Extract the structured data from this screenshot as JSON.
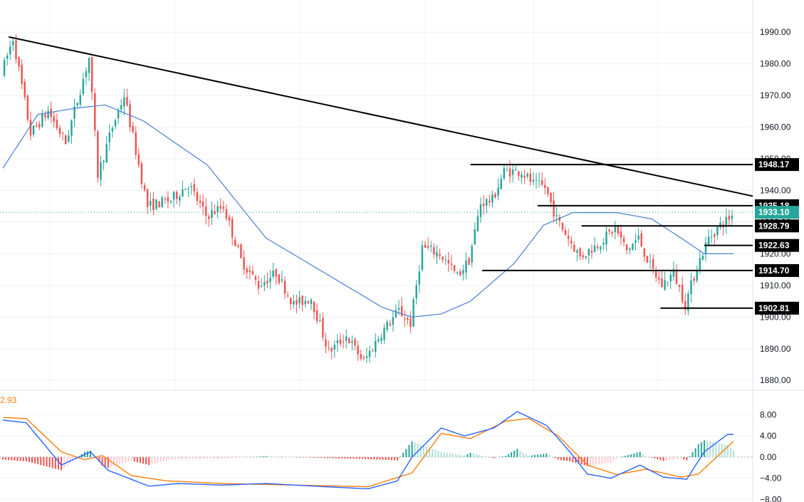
{
  "chart_data": [
    {
      "type": "candlestick",
      "title": "",
      "xlabel": "",
      "ylabel": "",
      "ylim": [
        1876,
        1997
      ],
      "y_ticks": [
        "1990.00",
        "1980.00",
        "1970.00",
        "1960.00",
        "1950.00",
        "1940.00",
        "1930.00",
        "1920.00",
        "1910.00",
        "1900.00",
        "1890.00",
        "1880.00"
      ],
      "y_tick_values": [
        1990,
        1980,
        1970,
        1960,
        1950,
        1940,
        1930,
        1920,
        1910,
        1900,
        1890,
        1880
      ],
      "grid": true,
      "colors": {
        "up": "#26a69a",
        "down": "#ef5350",
        "ma": "#4a7fd4",
        "line": "#000000",
        "last": "#26a69a"
      },
      "price_path": [
        [
          0,
          1977
        ],
        [
          4,
          1988
        ],
        [
          10,
          1958
        ],
        [
          16,
          1965
        ],
        [
          22,
          1955
        ],
        [
          30,
          1982
        ],
        [
          33,
          1945
        ],
        [
          38,
          1960
        ],
        [
          42,
          1970
        ],
        [
          50,
          1935
        ],
        [
          58,
          1937
        ],
        [
          64,
          1942
        ],
        [
          70,
          1932
        ],
        [
          76,
          1935
        ],
        [
          82,
          1918
        ],
        [
          88,
          1910
        ],
        [
          94,
          1914
        ],
        [
          100,
          1904
        ],
        [
          106,
          1906
        ],
        [
          112,
          1889
        ],
        [
          118,
          1894
        ],
        [
          124,
          1886
        ],
        [
          130,
          1895
        ],
        [
          136,
          1902
        ],
        [
          140,
          1898
        ],
        [
          144,
          1922
        ],
        [
          150,
          1920
        ],
        [
          156,
          1913
        ],
        [
          160,
          1918
        ],
        [
          164,
          1936
        ],
        [
          168,
          1937
        ],
        [
          172,
          1946
        ],
        [
          178,
          1946
        ],
        [
          182,
          1942
        ],
        [
          186,
          1941
        ],
        [
          190,
          1931
        ],
        [
          194,
          1925
        ],
        [
          198,
          1919
        ],
        [
          204,
          1923
        ],
        [
          210,
          1928
        ],
        [
          214,
          1921
        ],
        [
          218,
          1925
        ],
        [
          222,
          1916
        ],
        [
          226,
          1910
        ],
        [
          230,
          1914
        ],
        [
          234,
          1904
        ],
        [
          238,
          1916
        ],
        [
          242,
          1925
        ],
        [
          246,
          1929
        ],
        [
          250,
          1932
        ]
      ],
      "candle_count": 250,
      "last_price": "1933.10",
      "ma_path": [
        [
          0,
          1947
        ],
        [
          12,
          1964
        ],
        [
          25,
          1966
        ],
        [
          35,
          1967
        ],
        [
          48,
          1962
        ],
        [
          70,
          1948
        ],
        [
          90,
          1925
        ],
        [
          110,
          1914
        ],
        [
          130,
          1903
        ],
        [
          140,
          1900
        ],
        [
          150,
          1901
        ],
        [
          160,
          1905
        ],
        [
          175,
          1917
        ],
        [
          185,
          1929
        ],
        [
          195,
          1933
        ],
        [
          210,
          1933
        ],
        [
          222,
          1931
        ],
        [
          232,
          1925
        ],
        [
          240,
          1920
        ],
        [
          250,
          1920
        ]
      ],
      "trendline": {
        "from": [
          2,
          1988.5
        ],
        "to": [
          250,
          1939.5
        ]
      },
      "levels": [
        {
          "value": 1948.17,
          "label": "1948.17",
          "from": 160
        },
        {
          "value": 1935.18,
          "label": "1935.18",
          "from": 183
        },
        {
          "value": 1928.79,
          "label": "1928.79",
          "from": 198
        },
        {
          "value": 1922.63,
          "label": "1922.63",
          "from": 240
        },
        {
          "value": 1914.7,
          "label": "1914.70",
          "from": 164
        },
        {
          "value": 1902.81,
          "label": "1902.81",
          "from": 225
        }
      ]
    },
    {
      "type": "macd",
      "title": "",
      "ylim": [
        -8.5,
        10.5
      ],
      "y_ticks": [
        "8.00",
        "4.00",
        "0.00",
        "−4.00",
        "−8.00"
      ],
      "y_tick_values": [
        8,
        4,
        0,
        -4,
        -8
      ],
      "current_value_label": "2.93",
      "colors": {
        "macd": "#2962ff",
        "signal": "#ff7f0e",
        "hist_up_strong": "#26a69a",
        "hist_up_weak": "#b2dfdb",
        "hist_down_strong": "#ef5350",
        "hist_down_weak": "#ffcdd2",
        "value_label": "#ff7f0e"
      },
      "macd_path": [
        [
          0,
          7
        ],
        [
          8,
          6.5
        ],
        [
          20,
          -1.5
        ],
        [
          30,
          1
        ],
        [
          36,
          -2.5
        ],
        [
          50,
          -5.5
        ],
        [
          60,
          -5
        ],
        [
          75,
          -5.3
        ],
        [
          90,
          -5
        ],
        [
          110,
          -5.6
        ],
        [
          125,
          -6
        ],
        [
          135,
          -4.5
        ],
        [
          140,
          0
        ],
        [
          150,
          5.5
        ],
        [
          158,
          4
        ],
        [
          168,
          5.5
        ],
        [
          176,
          8.6
        ],
        [
          186,
          6
        ],
        [
          194,
          1
        ],
        [
          200,
          -3.2
        ],
        [
          208,
          -4
        ],
        [
          218,
          -1.5
        ],
        [
          226,
          -3.8
        ],
        [
          234,
          -4.2
        ],
        [
          240,
          1
        ],
        [
          248,
          4.3
        ]
      ],
      "signal_path": [
        [
          0,
          7.5
        ],
        [
          8,
          7.3
        ],
        [
          20,
          1
        ],
        [
          28,
          -0.5
        ],
        [
          34,
          0.3
        ],
        [
          44,
          -3.5
        ],
        [
          56,
          -4.5
        ],
        [
          75,
          -5
        ],
        [
          100,
          -5.3
        ],
        [
          125,
          -5.6
        ],
        [
          140,
          -3
        ],
        [
          150,
          4.5
        ],
        [
          160,
          3.5
        ],
        [
          172,
          6.8
        ],
        [
          180,
          7.3
        ],
        [
          190,
          4
        ],
        [
          200,
          -1.5
        ],
        [
          210,
          -3.3
        ],
        [
          220,
          -2.3
        ],
        [
          232,
          -3.8
        ],
        [
          238,
          -3.2
        ],
        [
          250,
          3
        ]
      ]
    }
  ]
}
